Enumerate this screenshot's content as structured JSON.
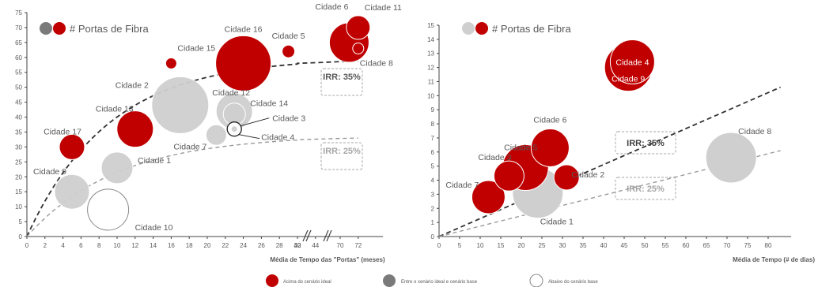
{
  "colors": {
    "red": "#c00000",
    "gray": "#b8b8b8",
    "dark_gray": "#7a7a7a",
    "axis": "#444444",
    "label": "#595959",
    "irr_box": "#a6a6a6"
  },
  "legend_footer": {
    "above": "Acima do cenário ideal",
    "between": "Entre o cenário ideal e cenário base",
    "below": "Abaixo do cenário base"
  },
  "chart_data": [
    {
      "type": "scatter",
      "subtype": "bubble",
      "legend_title": "# Portas de Fibra",
      "xlabel": "Média de Tempo das \"Portas\" (meses)",
      "ylabel": "",
      "x_ticks": [
        "0",
        "2",
        "4",
        "6",
        "8",
        "10",
        "12",
        "14",
        "16",
        "18",
        "20",
        "22",
        "24",
        "26",
        "28",
        "30",
        "42",
        "44",
        "70",
        "72"
      ],
      "y_ticks": [
        0,
        5,
        10,
        15,
        20,
        25,
        30,
        35,
        40,
        45,
        50,
        55,
        60,
        65,
        70,
        75
      ],
      "ylim": [
        0,
        75
      ],
      "axis_break": "between 30 and 42",
      "irr_labels": [
        "IRR: 35%",
        "IRR: 25%"
      ],
      "points": [
        {
          "name": "Cidade 1",
          "x": 10,
          "y": 23,
          "size": 20,
          "category": "between"
        },
        {
          "name": "Cidade 2",
          "x": 17,
          "y": 44,
          "size": 36,
          "category": "between"
        },
        {
          "name": "Cidade 3",
          "x": 23,
          "y": 36,
          "size": 4,
          "category": "between"
        },
        {
          "name": "Cidade 4",
          "x": 23,
          "y": 36,
          "size": 9,
          "category": "below"
        },
        {
          "name": "Cidade 5",
          "x": 41,
          "y": 62,
          "size": 8,
          "category": "above"
        },
        {
          "name": "Cidade 6",
          "x": 71,
          "y": 65,
          "size": 25,
          "category": "above"
        },
        {
          "name": "Cidade 7",
          "x": 21,
          "y": 34,
          "size": 13,
          "category": "between"
        },
        {
          "name": "Cidade 8",
          "x": 72,
          "y": 63,
          "size": 7,
          "category": "above"
        },
        {
          "name": "Cidade 9",
          "x": 5,
          "y": 15,
          "size": 22,
          "category": "between"
        },
        {
          "name": "Cidade 10",
          "x": 9,
          "y": 9,
          "size": 26,
          "category": "below"
        },
        {
          "name": "Cidade 11",
          "x": 72,
          "y": 70,
          "size": 15,
          "category": "above"
        },
        {
          "name": "Cidade 12",
          "x": 23,
          "y": 42,
          "size": 23,
          "category": "between"
        },
        {
          "name": "Cidade 13",
          "x": 12,
          "y": 36,
          "size": 23,
          "category": "above"
        },
        {
          "name": "Cidade 14",
          "x": 23,
          "y": 41,
          "size": 14,
          "category": "between"
        },
        {
          "name": "Cidade 15",
          "x": 16,
          "y": 58,
          "size": 7,
          "category": "above"
        },
        {
          "name": "Cidade 16",
          "x": 24,
          "y": 58,
          "size": 35,
          "category": "above"
        },
        {
          "name": "Cidade 17",
          "x": 5,
          "y": 30,
          "size": 16,
          "category": "above"
        }
      ]
    },
    {
      "type": "scatter",
      "subtype": "bubble",
      "legend_title": "# Portas de Fibra",
      "xlabel": "Média de Tempo (# de dias)",
      "ylabel": "",
      "x_ticks": [
        0,
        5,
        10,
        15,
        20,
        25,
        30,
        35,
        40,
        45,
        50,
        55,
        60,
        65,
        70,
        75,
        80
      ],
      "y_ticks": [
        0,
        1,
        2,
        3,
        4,
        5,
        6,
        7,
        8,
        9,
        10,
        11,
        12,
        13,
        14,
        15
      ],
      "xlim": [
        0,
        86
      ],
      "ylim": [
        0,
        15
      ],
      "irr_labels": [
        "IRR: 35%",
        "IRR: 25%"
      ],
      "points": [
        {
          "name": "Cidade 1",
          "x": 24,
          "y": 3.1,
          "size": 32,
          "category": "between"
        },
        {
          "name": "Cidade 2",
          "x": 31,
          "y": 4.2,
          "size": 16,
          "category": "above"
        },
        {
          "name": "Cidade 3",
          "x": 17,
          "y": 4.3,
          "size": 19,
          "category": "above"
        },
        {
          "name": "Cidade 4",
          "x": 47,
          "y": 12.4,
          "size": 28,
          "category": "above"
        },
        {
          "name": "Cidade 5",
          "x": 21,
          "y": 4.9,
          "size": 29,
          "category": "above"
        },
        {
          "name": "Cidade 6",
          "x": 27,
          "y": 6.3,
          "size": 24,
          "category": "above"
        },
        {
          "name": "Cidade 7",
          "x": 12,
          "y": 2.8,
          "size": 21,
          "category": "above"
        },
        {
          "name": "Cidade 8",
          "x": 71,
          "y": 5.6,
          "size": 32,
          "category": "between"
        },
        {
          "name": "Cidade 9",
          "x": 46,
          "y": 12,
          "size": 30,
          "category": "above"
        }
      ]
    }
  ]
}
